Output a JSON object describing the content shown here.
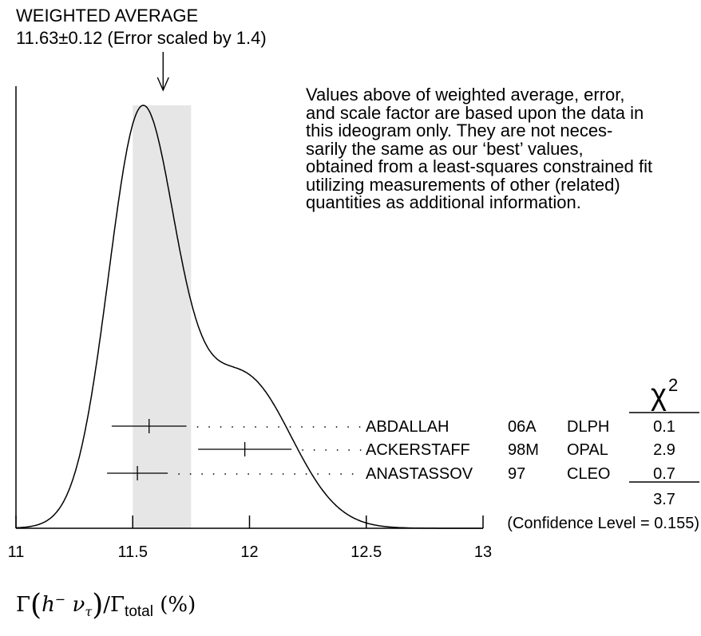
{
  "chart_data": {
    "type": "ideogram",
    "title_line1": "WEIGHTED AVERAGE",
    "title_line2": "11.63±0.12 (Error scaled by 1.4)",
    "weighted_average": 11.63,
    "band": [
      11.5,
      11.75
    ],
    "xlim": [
      11,
      13
    ],
    "x_ticks": [
      {
        "value": 11,
        "label": "11"
      },
      {
        "value": 11.5,
        "label": "11.5"
      },
      {
        "value": 12,
        "label": "12"
      },
      {
        "value": 12.5,
        "label": "12.5"
      },
      {
        "value": 13,
        "label": "13"
      }
    ],
    "note": "Values above of weighted average, error,\nand scale factor are based upon the data in\nthis ideogram only.  They are not neces-\nsarily the same as our ‘best’ values,\nobtained from a least-squares constrained fit\nutilizing measurements of other (related)\nquantities as additional information.",
    "chi2_header": "χ",
    "chi2_header_exp": "2",
    "measurements": [
      {
        "author": "ABDALLAH",
        "year": "06A",
        "experiment": "DLPH",
        "value": 11.57,
        "error": 0.16,
        "chi2": "0.1"
      },
      {
        "author": "ACKERSTAFF",
        "year": "98M",
        "experiment": "OPAL",
        "value": 11.98,
        "error": 0.2,
        "chi2": "2.9"
      },
      {
        "author": "ANASTASSOV",
        "year": "97",
        "experiment": "CLEO",
        "value": 11.52,
        "error": 0.13,
        "chi2": "0.7"
      }
    ],
    "chi2_total": "3.7",
    "confidence": "(Confidence Level = 0.155)",
    "xlabel": {
      "gamma": "Γ",
      "h": "h",
      "h_sup": "−",
      "nu": "ν",
      "nu_sub": "τ",
      "slash": "/Γ",
      "total": "total",
      "unit": "(%)"
    }
  }
}
